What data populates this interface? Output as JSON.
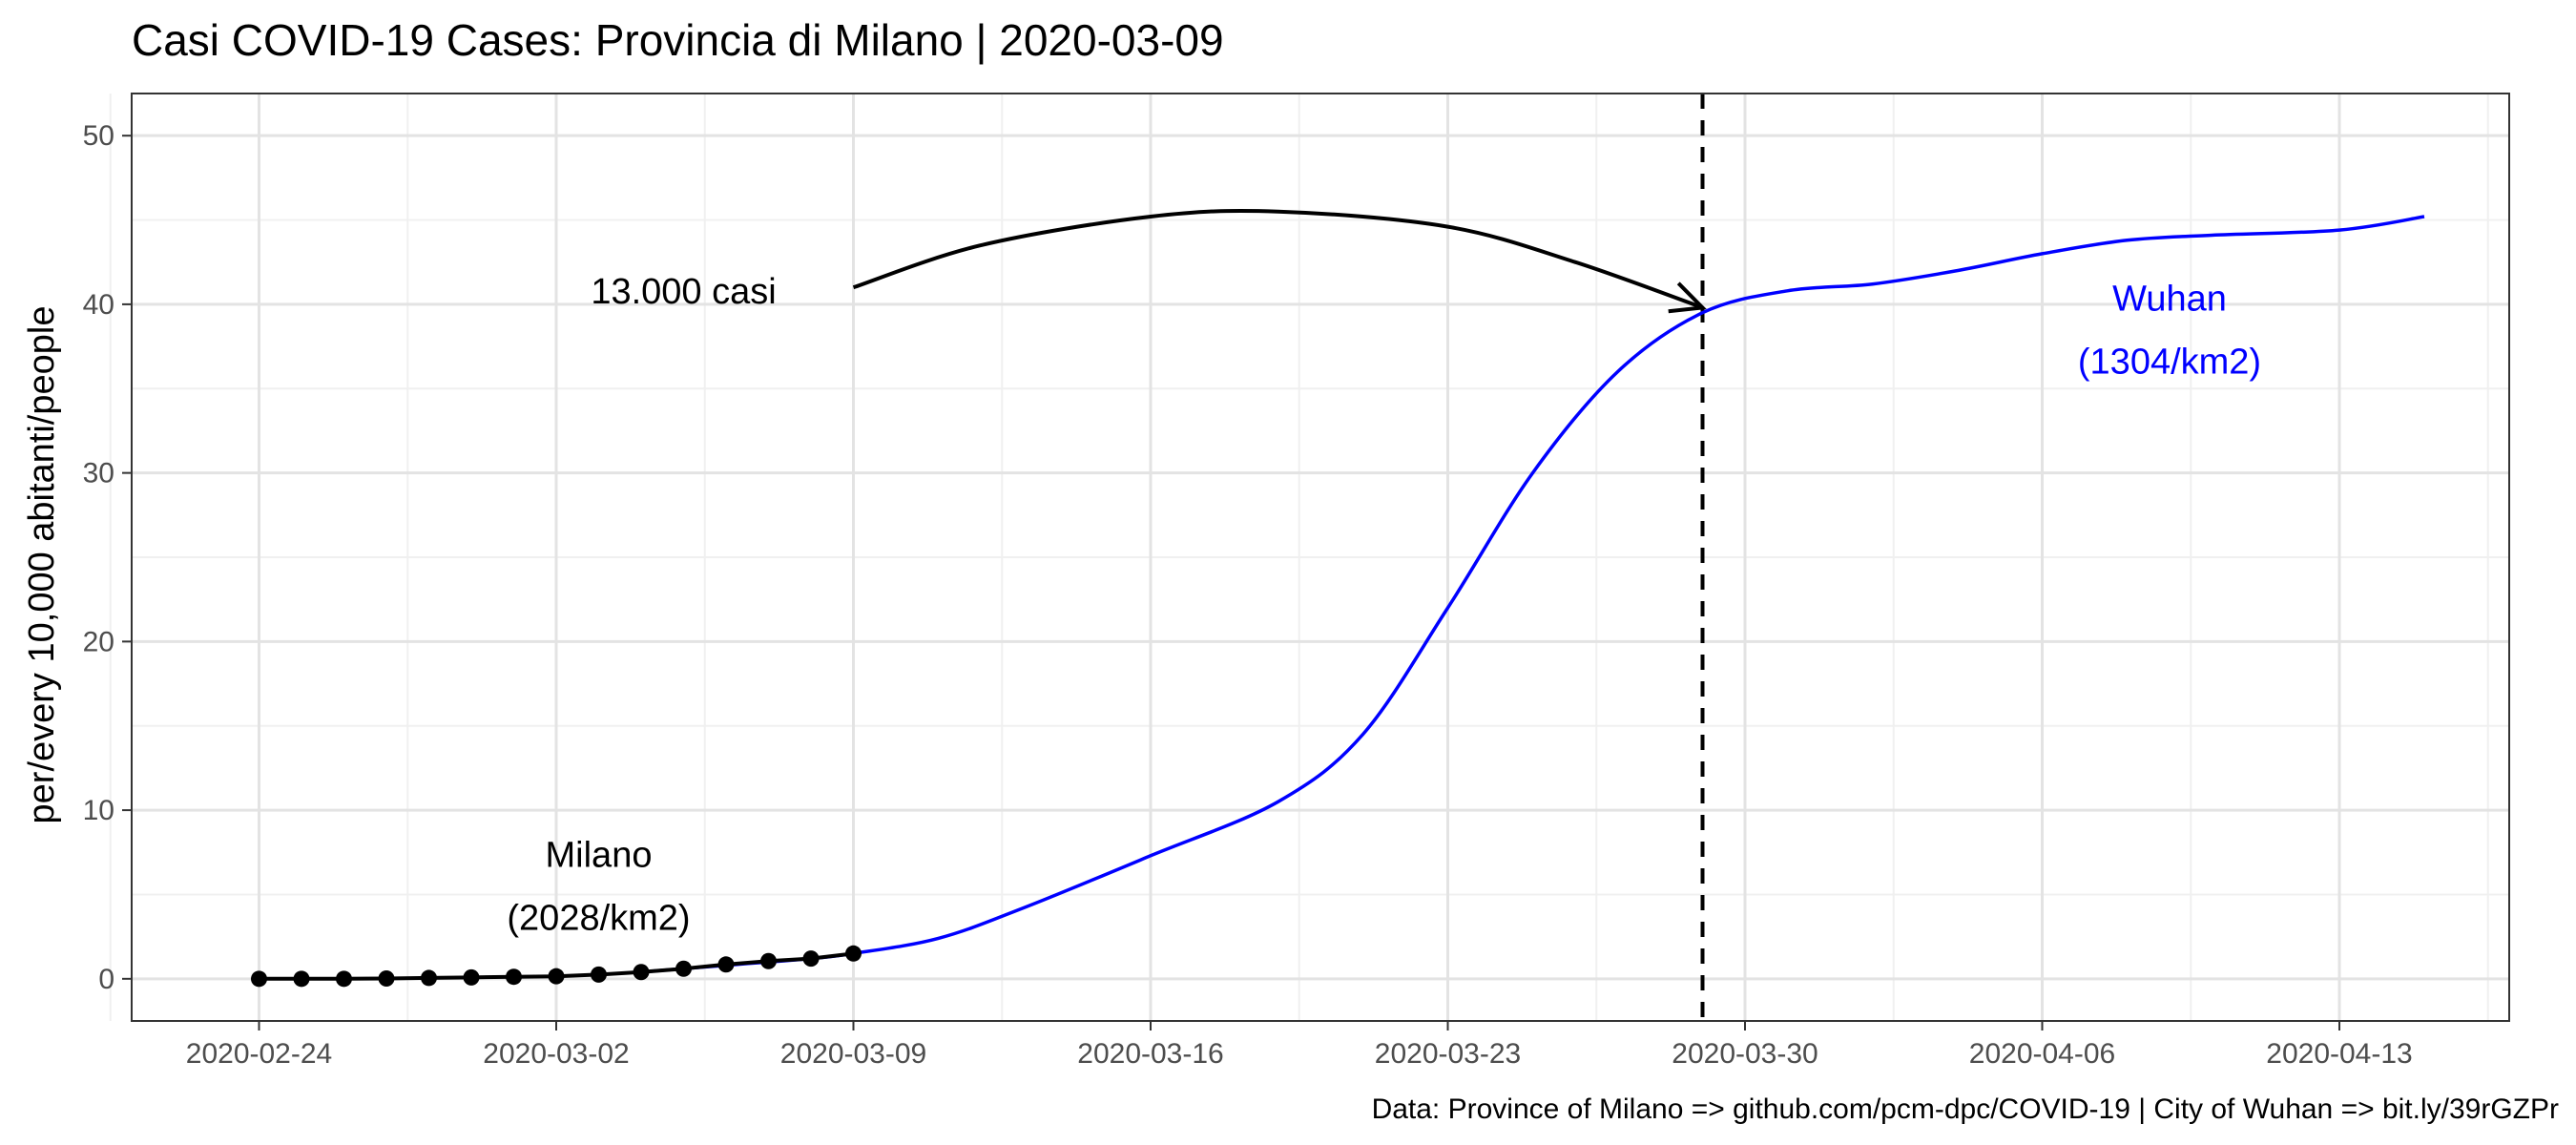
{
  "chart_data": {
    "type": "line",
    "title": "Casi COVID-19 Cases: Provincia di Milano | 2020-03-09",
    "xlabel": "",
    "ylabel": "per/every 10,000 abitanti/people",
    "caption": "Data: Province of Milano => github.com/pcm-dpc/COVID-19 | City of Wuhan => bit.ly/39rGZPr",
    "x_type": "date",
    "xlim": [
      "2020-02-21",
      "2020-04-17"
    ],
    "ylim": [
      -2.5,
      52.5
    ],
    "x_ticks": [
      "2020-02-24",
      "2020-03-02",
      "2020-03-09",
      "2020-03-16",
      "2020-03-23",
      "2020-03-30",
      "2020-04-06",
      "2020-04-13"
    ],
    "y_ticks": [
      0,
      10,
      20,
      30,
      40,
      50
    ],
    "grid": true,
    "legend": "none",
    "series": [
      {
        "name": "Milano",
        "color": "#000000",
        "markers": true,
        "x": [
          "2020-02-24",
          "2020-02-25",
          "2020-02-26",
          "2020-02-27",
          "2020-02-28",
          "2020-02-29",
          "2020-03-01",
          "2020-03-02",
          "2020-03-03",
          "2020-03-04",
          "2020-03-05",
          "2020-03-06",
          "2020-03-07",
          "2020-03-08",
          "2020-03-09"
        ],
        "y": [
          0.0,
          0.0,
          0.0,
          0.02,
          0.05,
          0.08,
          0.12,
          0.15,
          0.25,
          0.4,
          0.6,
          0.85,
          1.05,
          1.2,
          1.5
        ]
      },
      {
        "name": "Wuhan",
        "color": "#0000ff",
        "markers": false,
        "x": [
          "2020-03-04",
          "2020-03-06",
          "2020-03-08",
          "2020-03-09",
          "2020-03-11",
          "2020-03-13",
          "2020-03-16",
          "2020-03-19",
          "2020-03-21",
          "2020-03-23",
          "2020-03-25",
          "2020-03-27",
          "2020-03-29",
          "2020-03-31",
          "2020-04-02",
          "2020-04-04",
          "2020-04-06",
          "2020-04-08",
          "2020-04-10",
          "2020-04-13",
          "2020-04-15"
        ],
        "y": [
          0.4,
          0.8,
          1.2,
          1.5,
          2.4,
          4.2,
          7.3,
          10.5,
          14.5,
          22.0,
          30.0,
          36.0,
          39.5,
          40.8,
          41.2,
          42.0,
          43.0,
          43.8,
          44.1,
          44.4,
          45.2
        ]
      }
    ],
    "annotations": [
      {
        "text_lines": [
          "Milano",
          "(2028/km2)"
        ],
        "x": "2020-03-03",
        "y": 5.5,
        "color": "#000000"
      },
      {
        "text_lines": [
          "Wuhan",
          "(1304/km2)"
        ],
        "x": "2020-04-09",
        "y": 38.5,
        "color": "#0000ff"
      },
      {
        "text_lines": [
          "13.000 casi"
        ],
        "x": "2020-03-05",
        "y": 40.8,
        "color": "#000000"
      }
    ],
    "vline": {
      "x": "2020-03-29",
      "style": "dashed",
      "color": "#000000"
    },
    "arrow": {
      "color": "#000000",
      "points": [
        [
          "2020-03-09",
          41.0
        ],
        [
          "2020-03-12",
          43.5
        ],
        [
          "2020-03-16",
          45.2
        ],
        [
          "2020-03-19",
          45.5
        ],
        [
          "2020-03-23",
          44.6
        ],
        [
          "2020-03-26",
          42.5
        ],
        [
          "2020-03-29",
          39.8
        ]
      ]
    }
  }
}
